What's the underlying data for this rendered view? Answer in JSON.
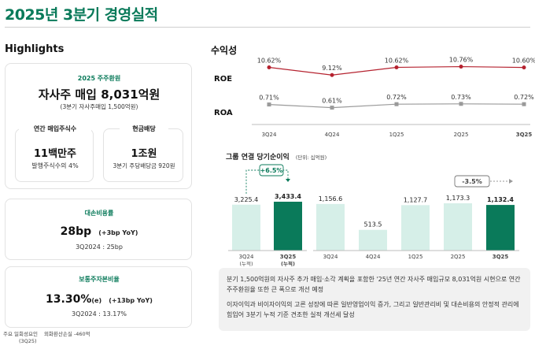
{
  "title": "2025년 3분기 경영실적",
  "highlights": {
    "heading": "Highlights",
    "buyback": {
      "tag": "2025 주주환원",
      "main": "자사주 매입 8,031억원",
      "sub": "(3분기 자사주매입 1,500억원)",
      "shares_label": "연간 매입주식수",
      "shares_value": "11백만주",
      "shares_note": "발행주식수의 4%",
      "dividend_label": "현금배당",
      "dividend_value": "1조원",
      "dividend_note": "3분기 주당배당금 920원"
    },
    "credit_cost": {
      "label": "대손비용률",
      "value": "28bp",
      "change": "(+3bp YoY)",
      "prev": "3Q2024 : 25bp"
    },
    "cet1": {
      "label": "보통주자본비율",
      "value": "13.30%",
      "suffix": "(e)",
      "change": "(+13bp YoY)",
      "prev": "3Q2024 : 13.17%"
    }
  },
  "footer": {
    "line1_label": "주요 일회성요인",
    "line1_value": "외화환산손실 -460억",
    "line2": "(3Q25)"
  },
  "profitability": {
    "heading": "수익성",
    "categories": [
      "3Q24",
      "4Q24",
      "1Q25",
      "2Q25",
      "3Q25"
    ],
    "roe_label": "ROE",
    "roa_label": "ROA",
    "roe_labels": [
      "10.62%",
      "9.12%",
      "10.62%",
      "10.76%",
      "10.60%"
    ],
    "roa_labels": [
      "0.71%",
      "0.61%",
      "0.72%",
      "0.73%",
      "0.72%"
    ],
    "roe_color": "#b5222f",
    "roa_color": "#9a9a9a"
  },
  "net_income": {
    "heading": "그룹 연결 당기순이익",
    "unit": "(단위: 십억원)",
    "cum_growth": "+6.5%",
    "qoq_change": "-3.5%",
    "cum_bar_labels": [
      "3,225.4",
      "3,433.4"
    ],
    "cum_categories": [
      "3Q24",
      "3Q25"
    ],
    "cum_sublabel": "(누적)",
    "qtr_bar_labels": [
      "1,156.6",
      "513.5",
      "1,127.7",
      "1,173.3",
      "1,132.4"
    ],
    "qtr_categories": [
      "3Q24",
      "4Q24",
      "1Q25",
      "2Q25",
      "3Q25"
    ],
    "light_color": "#d6efe8",
    "dark_color": "#0a7a5a"
  },
  "notes": [
    "분기 1,500억원의 자사주 추가 매입·소각 계획을 포함한 '25년 연간 자사주 매입규모 8,031억원 시현으로 연간 주주환원율 또한 큰 폭으로 개선 예정",
    "이자이익과 비이자이익의 고른 성장에 따른 일반영업이익 증가, 그리고 일반관리비 및 대손비용의 안정적 관리에 힘입어 3분기 누적 기준 견조한 실적 개선세 달성"
  ],
  "chart_data": [
    {
      "type": "line",
      "title": "수익성",
      "categories": [
        "3Q24",
        "4Q24",
        "1Q25",
        "2Q25",
        "3Q25"
      ],
      "series": [
        {
          "name": "ROE",
          "values": [
            10.62,
            9.12,
            10.62,
            10.76,
            10.6
          ],
          "unit": "%"
        },
        {
          "name": "ROA",
          "values": [
            0.71,
            0.61,
            0.72,
            0.73,
            0.72
          ],
          "unit": "%"
        }
      ]
    },
    {
      "type": "bar",
      "title": "그룹 연결 당기순이익 (누적)",
      "categories": [
        "3Q24",
        "3Q25"
      ],
      "values": [
        3225.4,
        3433.4
      ],
      "unit": "십억원",
      "ylim": [
        0,
        3600
      ]
    },
    {
      "type": "bar",
      "title": "그룹 연결 당기순이익 (분기)",
      "categories": [
        "3Q24",
        "4Q24",
        "1Q25",
        "2Q25",
        "3Q25"
      ],
      "values": [
        1156.6,
        513.5,
        1127.7,
        1173.3,
        1132.4
      ],
      "unit": "십억원",
      "ylim": [
        0,
        1300
      ]
    }
  ]
}
